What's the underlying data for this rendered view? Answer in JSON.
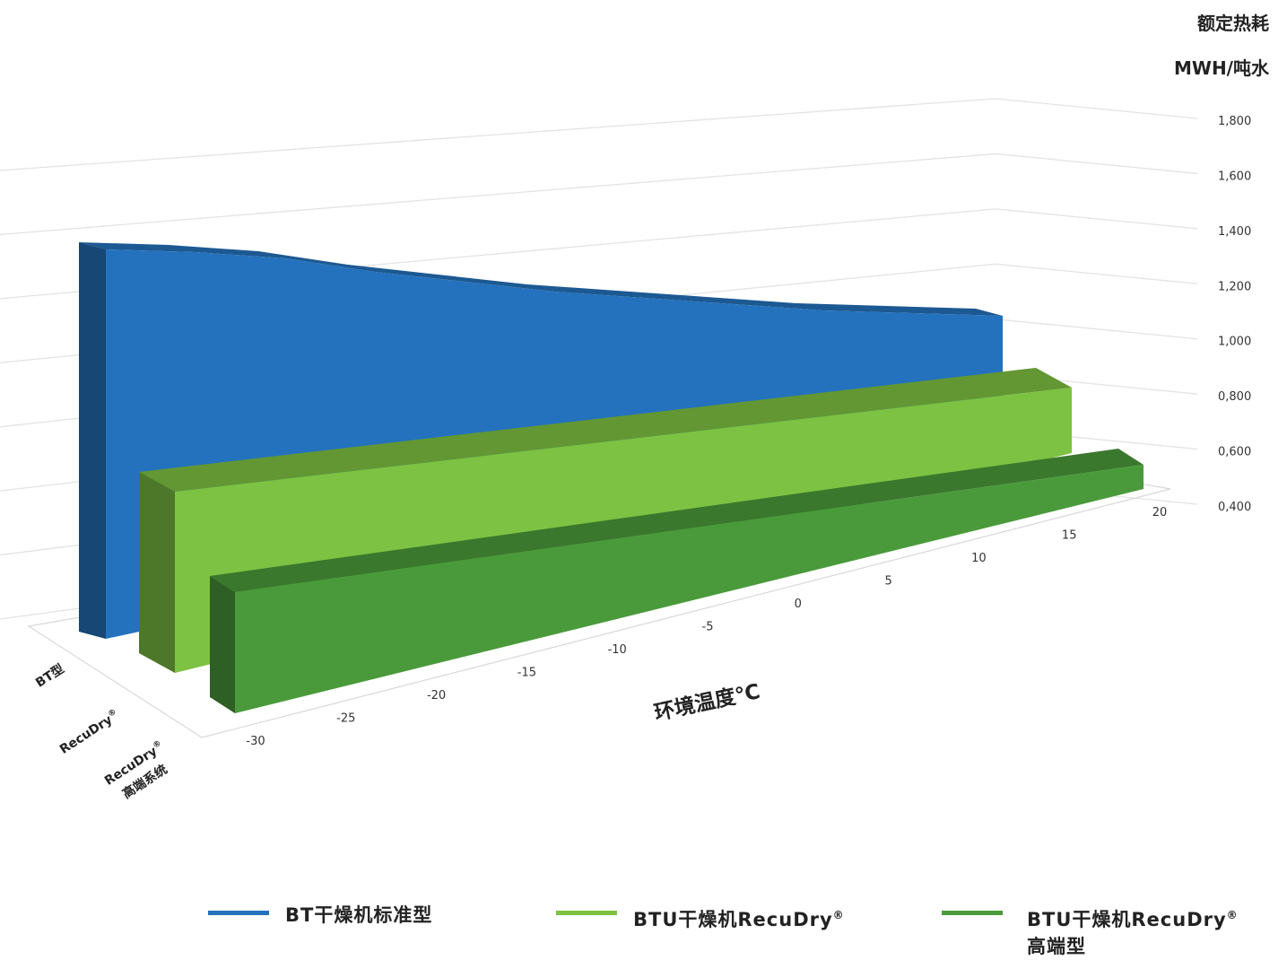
{
  "chart_data": {
    "type": "area",
    "view": "3d-ribbon",
    "z_axis": {
      "title_line1": "额定热耗",
      "title_line2": "MWH/吨水",
      "ticks": [
        "0,400",
        "0,600",
        "0,800",
        "1,000",
        "1,200",
        "1,400",
        "1,600",
        "1,800"
      ],
      "range": [
        0.4,
        1.8
      ]
    },
    "x_axis": {
      "label": "环境温度℃",
      "ticks": [
        "-30",
        "-25",
        "-20",
        "-15",
        "-10",
        "-5",
        "0",
        "5",
        "10",
        "15",
        "20"
      ],
      "range": [
        -30,
        20
      ]
    },
    "depth_axis": {
      "categories": [
        {
          "line1": "BT型",
          "line2": "",
          "sup": ""
        },
        {
          "line1": "RecuDry",
          "line2": "",
          "sup": "®"
        },
        {
          "line1": "RecuDry",
          "line2": "高端系统",
          "sup": "®"
        }
      ]
    },
    "x": [
      -30,
      -25,
      -20,
      -15,
      -10,
      -5,
      0,
      5,
      10,
      15,
      20
    ],
    "series": [
      {
        "name": "BT干燥机标准型",
        "color": "#2472bd",
        "values": [
          1.26,
          1.26,
          1.25,
          1.22,
          1.2,
          1.18,
          1.17,
          1.16,
          1.15,
          1.15,
          1.15
        ]
      },
      {
        "name": "BTU干燥机RecuDry",
        "sup": "®",
        "color": "#7dc242",
        "values": [
          0.62,
          0.62,
          0.62,
          0.62,
          0.62,
          0.62,
          0.62,
          0.62,
          0.62,
          0.62,
          0.62
        ]
      },
      {
        "name": "BTU干燥机RecuDry",
        "sup": "®",
        "name_line2": "高端型",
        "color": "#4a9a3b",
        "values": [
          0.45,
          0.45,
          0.45,
          0.45,
          0.45,
          0.45,
          0.45,
          0.45,
          0.45,
          0.45,
          0.45
        ]
      }
    ],
    "grid": true,
    "legend_position": "bottom"
  }
}
